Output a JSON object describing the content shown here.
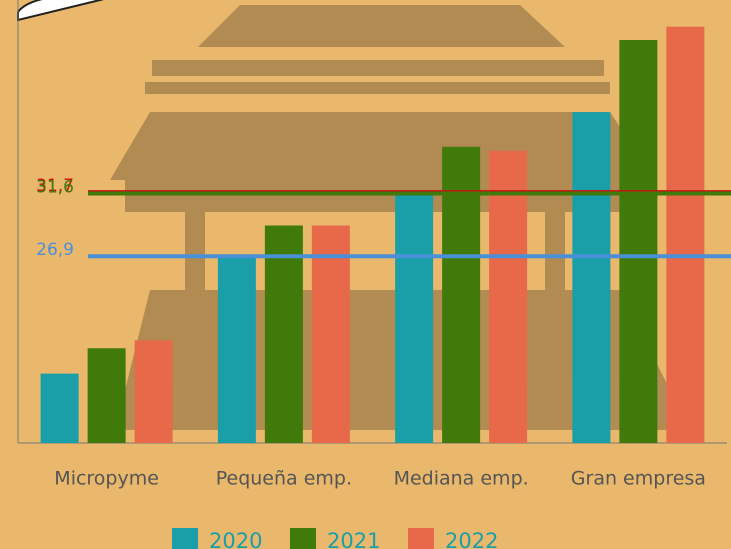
{
  "chart_data": {
    "type": "bar",
    "categories": [
      "Micropyme",
      "Pequeña emp.",
      "Mediana emp.",
      "Gran empresa"
    ],
    "series": [
      {
        "name": "2020",
        "color": "#1a9fa8",
        "values": [
          18.1,
          26.9,
          31.5,
          37.7
        ]
      },
      {
        "name": "2021",
        "color": "#3f7a0a",
        "values": [
          20.0,
          29.2,
          35.1,
          43.1
        ]
      },
      {
        "name": "2022",
        "color": "#e8694a",
        "values": [
          20.6,
          29.2,
          34.8,
          44.1
        ]
      }
    ],
    "reference_lines": [
      {
        "value": 31.7,
        "label": "31,7",
        "color": "#cc1010"
      },
      {
        "value": 31.6,
        "label": "31,6",
        "color": "#3f7a0a"
      },
      {
        "value": 26.9,
        "label": "26,9",
        "color": "#4a90d9"
      }
    ],
    "ylim": [
      12.9,
      46.1
    ]
  }
}
